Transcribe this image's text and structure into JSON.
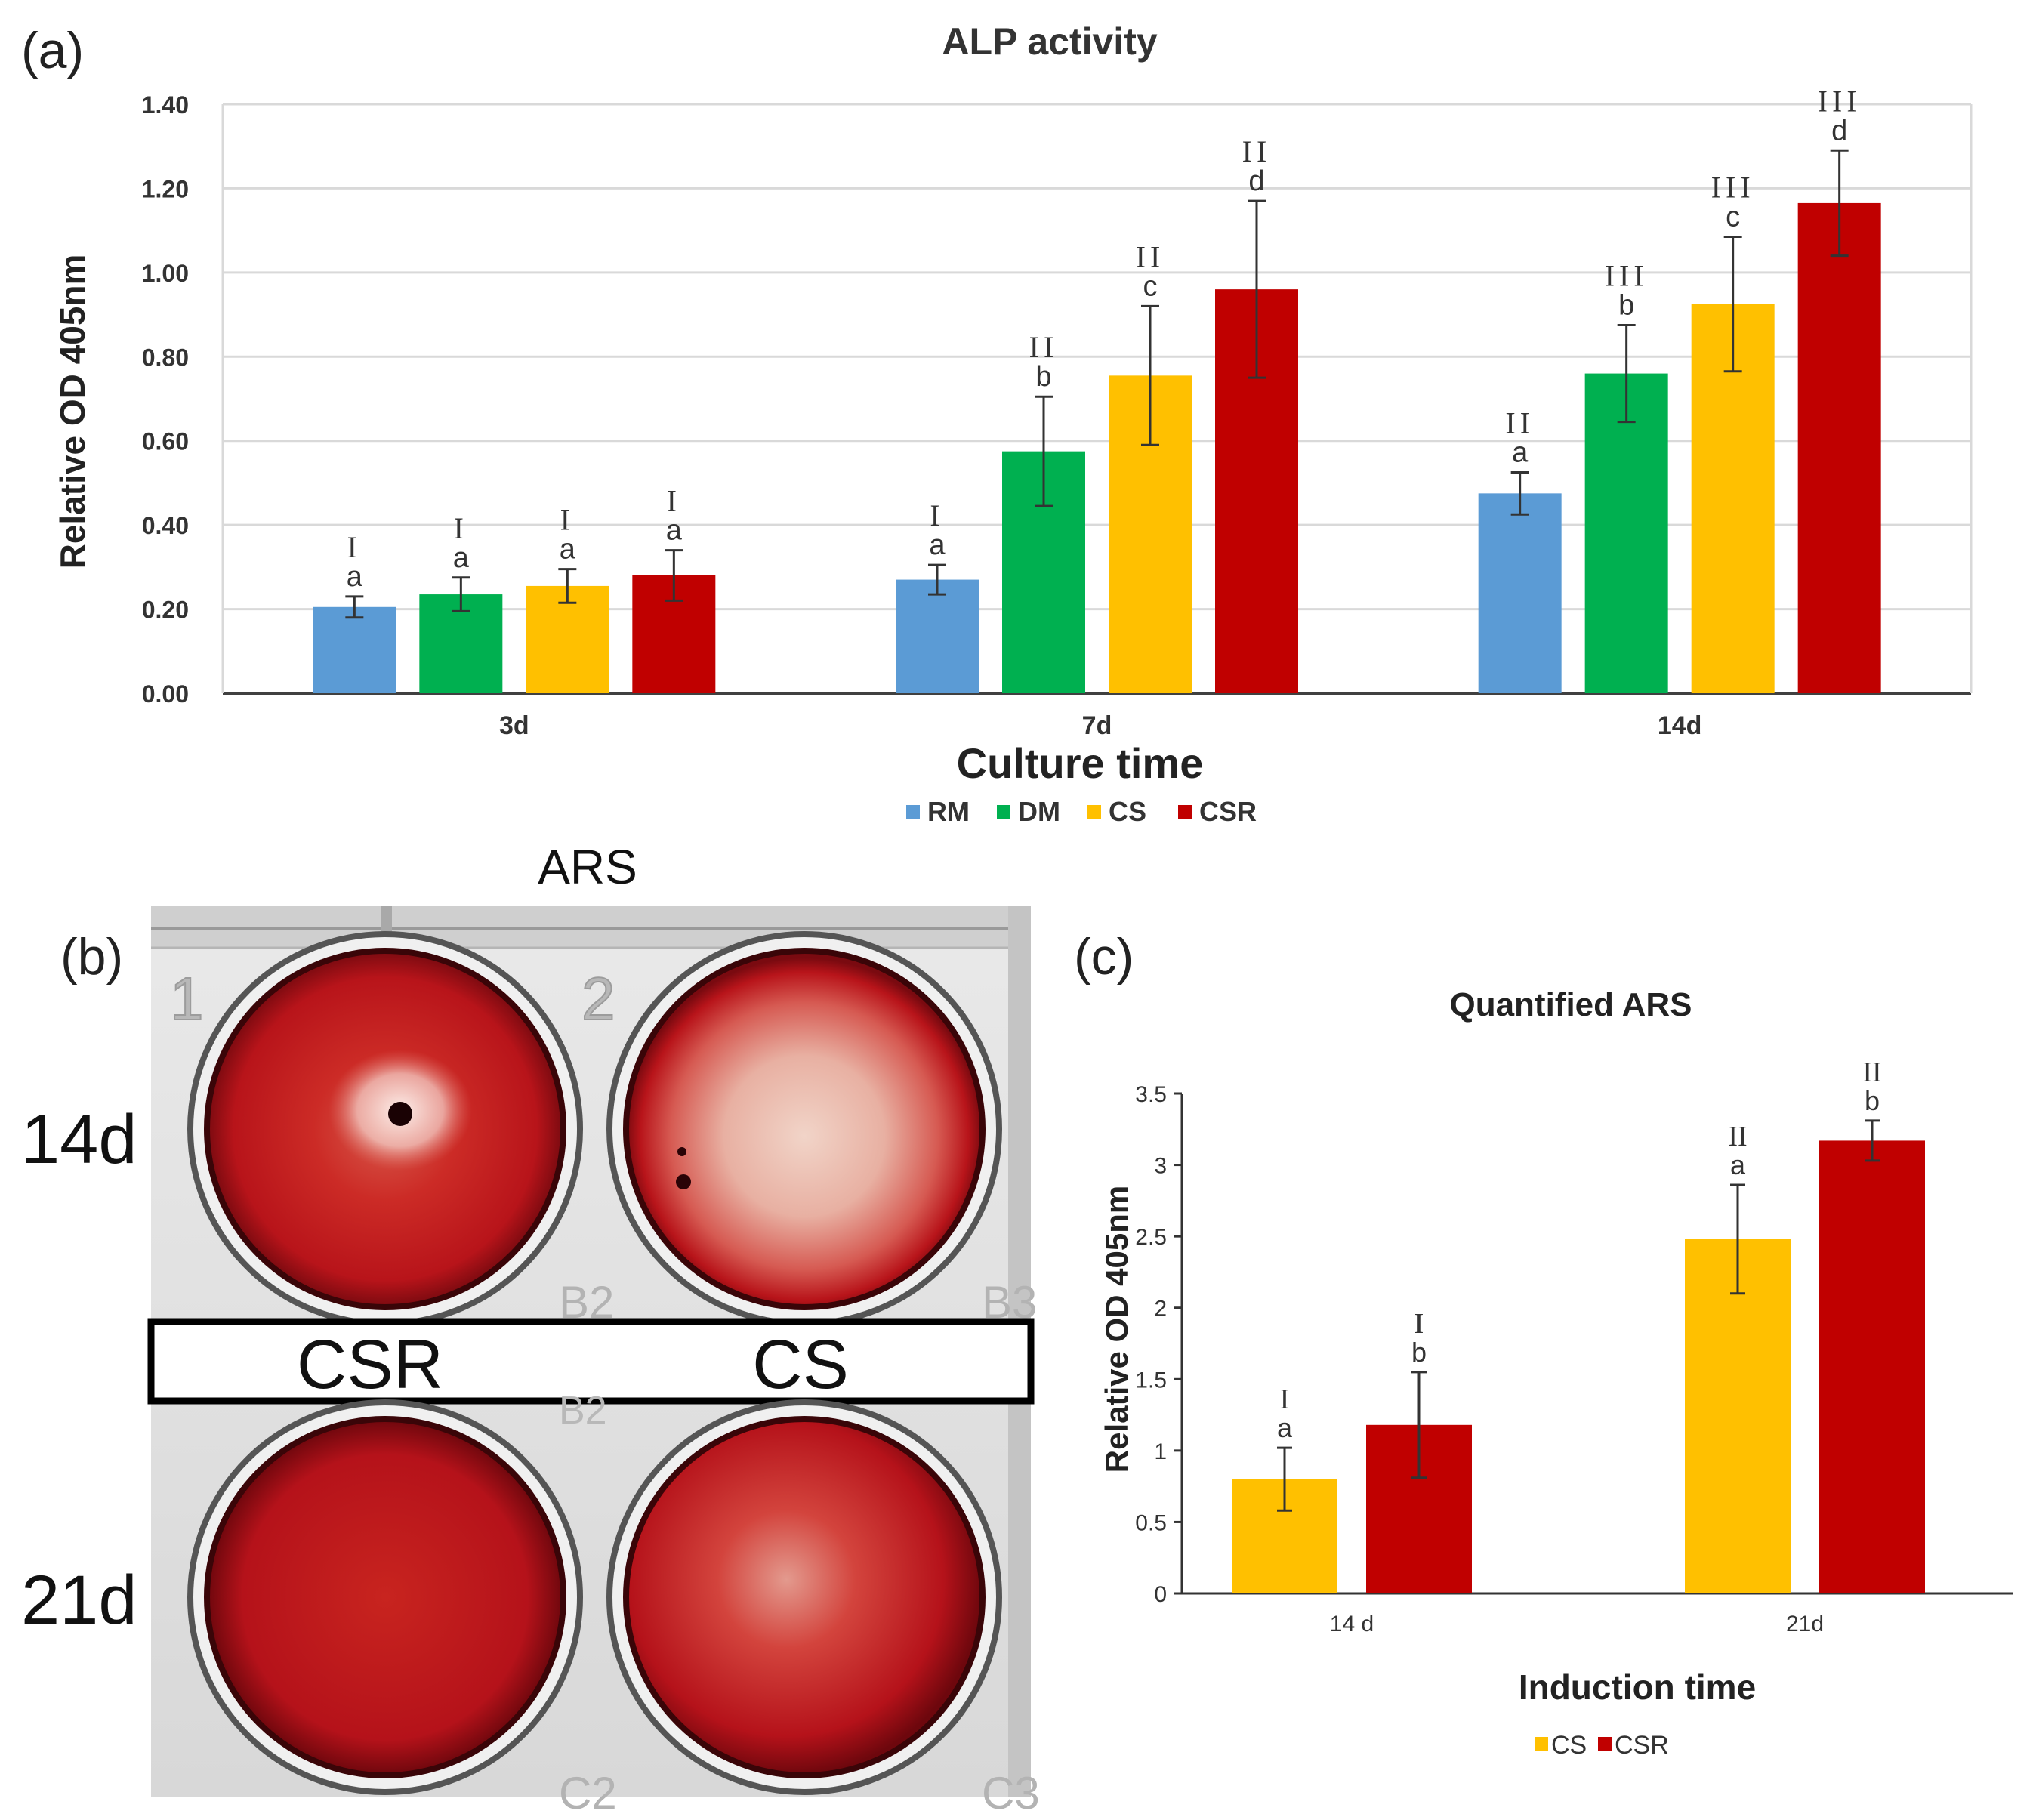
{
  "colors": {
    "RM": "#5b9bd5",
    "DM": "#00b050",
    "CS": "#ffc000",
    "CSR": "#c00000",
    "grid": "#d9d9d9",
    "axis": "#404040",
    "error_bar": "#333333",
    "stain_dark": "#a80e14",
    "stain_light": "#e9b3a6"
  },
  "panel_a": {
    "panel_label": "(a)",
    "chart_data": {
      "type": "bar",
      "title": "ALP activity",
      "xlabel": "Culture time",
      "ylabel": "Relative OD 405nm",
      "ylim": [
        0,
        1.4
      ],
      "yticks": [
        "0.00",
        "0.20",
        "0.40",
        "0.60",
        "0.80",
        "1.00",
        "1.20",
        "1.40"
      ],
      "grid": true,
      "legend_position": "bottom",
      "categories": [
        "3d",
        "7d",
        "14d"
      ],
      "series": [
        {
          "name": "RM",
          "color_key": "RM",
          "values": [
            0.205,
            0.27,
            0.475
          ],
          "errors": [
            0.025,
            0.035,
            0.05
          ],
          "letters": [
            "a",
            "a",
            "a"
          ],
          "romans": [
            "I",
            "I",
            "II"
          ]
        },
        {
          "name": "DM",
          "color_key": "DM",
          "values": [
            0.235,
            0.575,
            0.76
          ],
          "errors": [
            0.04,
            0.13,
            0.115
          ],
          "letters": [
            "a",
            "b",
            "b"
          ],
          "romans": [
            "I",
            "II",
            "III"
          ]
        },
        {
          "name": "CS",
          "color_key": "CS",
          "values": [
            0.255,
            0.755,
            0.925
          ],
          "errors": [
            0.04,
            0.165,
            0.16
          ],
          "letters": [
            "a",
            "c",
            "c"
          ],
          "romans": [
            "I",
            "II",
            "III"
          ]
        },
        {
          "name": "CSR",
          "color_key": "CSR",
          "values": [
            0.28,
            0.96,
            1.165
          ],
          "errors": [
            0.06,
            0.21,
            0.125
          ],
          "letters": [
            "a",
            "d",
            "d"
          ],
          "romans": [
            "I",
            "II",
            "III"
          ]
        }
      ]
    }
  },
  "panel_b": {
    "panel_label": "(b)",
    "title": "ARS",
    "row_labels": [
      "14d",
      "21d"
    ],
    "column_labels": [
      "CSR",
      "CS"
    ],
    "well_numbers": [
      "1",
      "2"
    ],
    "plate_marks_top": [
      "B2",
      "B3"
    ],
    "plate_marks_mid": "B2",
    "plate_marks_bottom": [
      "C2",
      "C3"
    ]
  },
  "panel_c": {
    "panel_label": "(c)",
    "chart_data": {
      "type": "bar",
      "title": "Quantified ARS",
      "xlabel": "Induction time",
      "ylabel": "Relative OD 405nm",
      "ylim": [
        0,
        3.5
      ],
      "yticks": [
        "0",
        "0.5",
        "1",
        "1.5",
        "2",
        "2.5",
        "3",
        "3.5"
      ],
      "grid": false,
      "legend_position": "bottom",
      "categories": [
        "14 d",
        "21d"
      ],
      "series": [
        {
          "name": "CS",
          "color_key": "CS",
          "values": [
            0.8,
            2.48
          ],
          "errors": [
            0.22,
            0.38
          ],
          "letters": [
            "a",
            "a"
          ],
          "romans": [
            "I",
            "II"
          ]
        },
        {
          "name": "CSR",
          "color_key": "CSR",
          "values": [
            1.18,
            3.17
          ],
          "errors": [
            0.37,
            0.14
          ],
          "letters": [
            "b",
            "b"
          ],
          "romans": [
            "I",
            "II"
          ]
        }
      ]
    }
  }
}
